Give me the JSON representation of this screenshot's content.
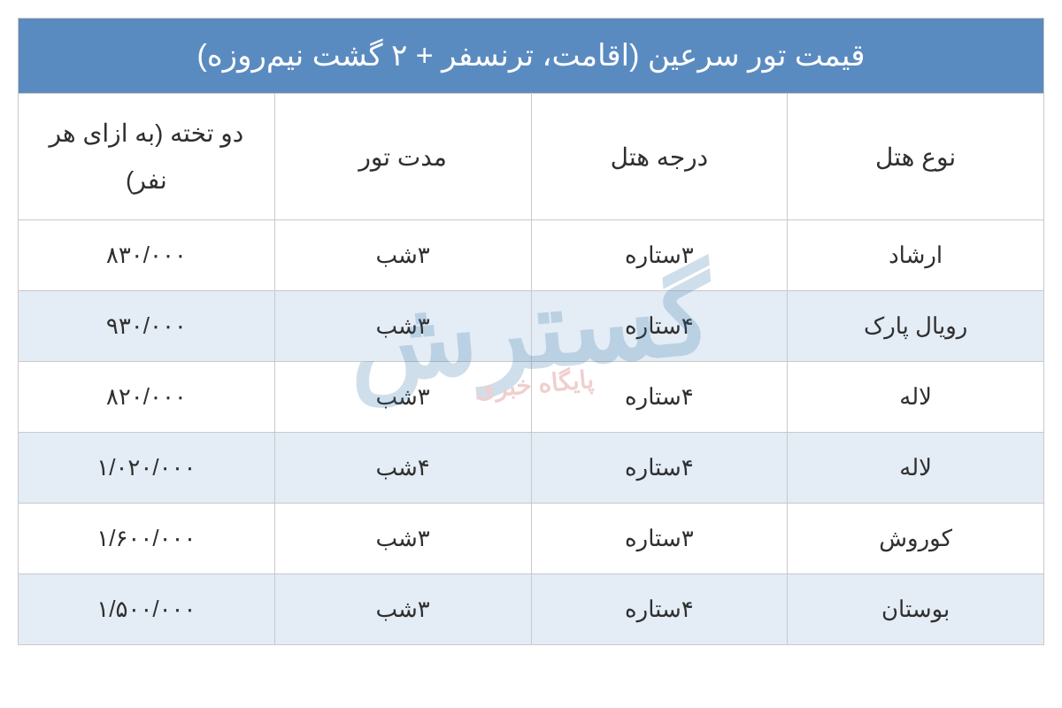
{
  "table": {
    "title": "قیمت تور سرعین (اقامت، ترنسفر + ۲ گشت نیم‌روزه)",
    "title_bg": "#5a8bc0",
    "title_color": "#ffffff",
    "title_fontsize": 34,
    "header_bg": "#ffffff",
    "header_color": "#2f2f2f",
    "header_fontsize": 28,
    "row_odd_bg": "#ffffff",
    "row_even_bg": "#e4ecf5",
    "border_color": "#c9c9c9",
    "cell_fontsize": 26,
    "columns": [
      "نوع هتل",
      "درجه هتل",
      "مدت تور",
      "دو تخته (به ازای هر نفر)"
    ],
    "rows": [
      {
        "hotel": "ارشاد",
        "stars": "۳ستاره",
        "duration": "۳شب",
        "price": "۸۳۰/۰۰۰"
      },
      {
        "hotel": "رویال پارک",
        "stars": "۴ستاره",
        "duration": "۳شب",
        "price": "۹۳۰/۰۰۰"
      },
      {
        "hotel": "لاله",
        "stars": "۴ستاره",
        "duration": "۳شب",
        "price": "۸۲۰/۰۰۰"
      },
      {
        "hotel": "لاله",
        "stars": "۴ستاره",
        "duration": "۴شب",
        "price": "۱/۰۲۰/۰۰۰"
      },
      {
        "hotel": "کوروش",
        "stars": "۳ستاره",
        "duration": "۳شب",
        "price": "۱/۶۰۰/۰۰۰"
      },
      {
        "hotel": "بوستان",
        "stars": "۴ستاره",
        "duration": "۳شب",
        "price": "۱/۵۰۰/۰۰۰"
      }
    ]
  },
  "watermark": {
    "main": "گسترش",
    "sub": "پایگاه خبری",
    "main_color": "#2a6fa8",
    "sub_color": "#c02828",
    "opacity": 0.22
  }
}
